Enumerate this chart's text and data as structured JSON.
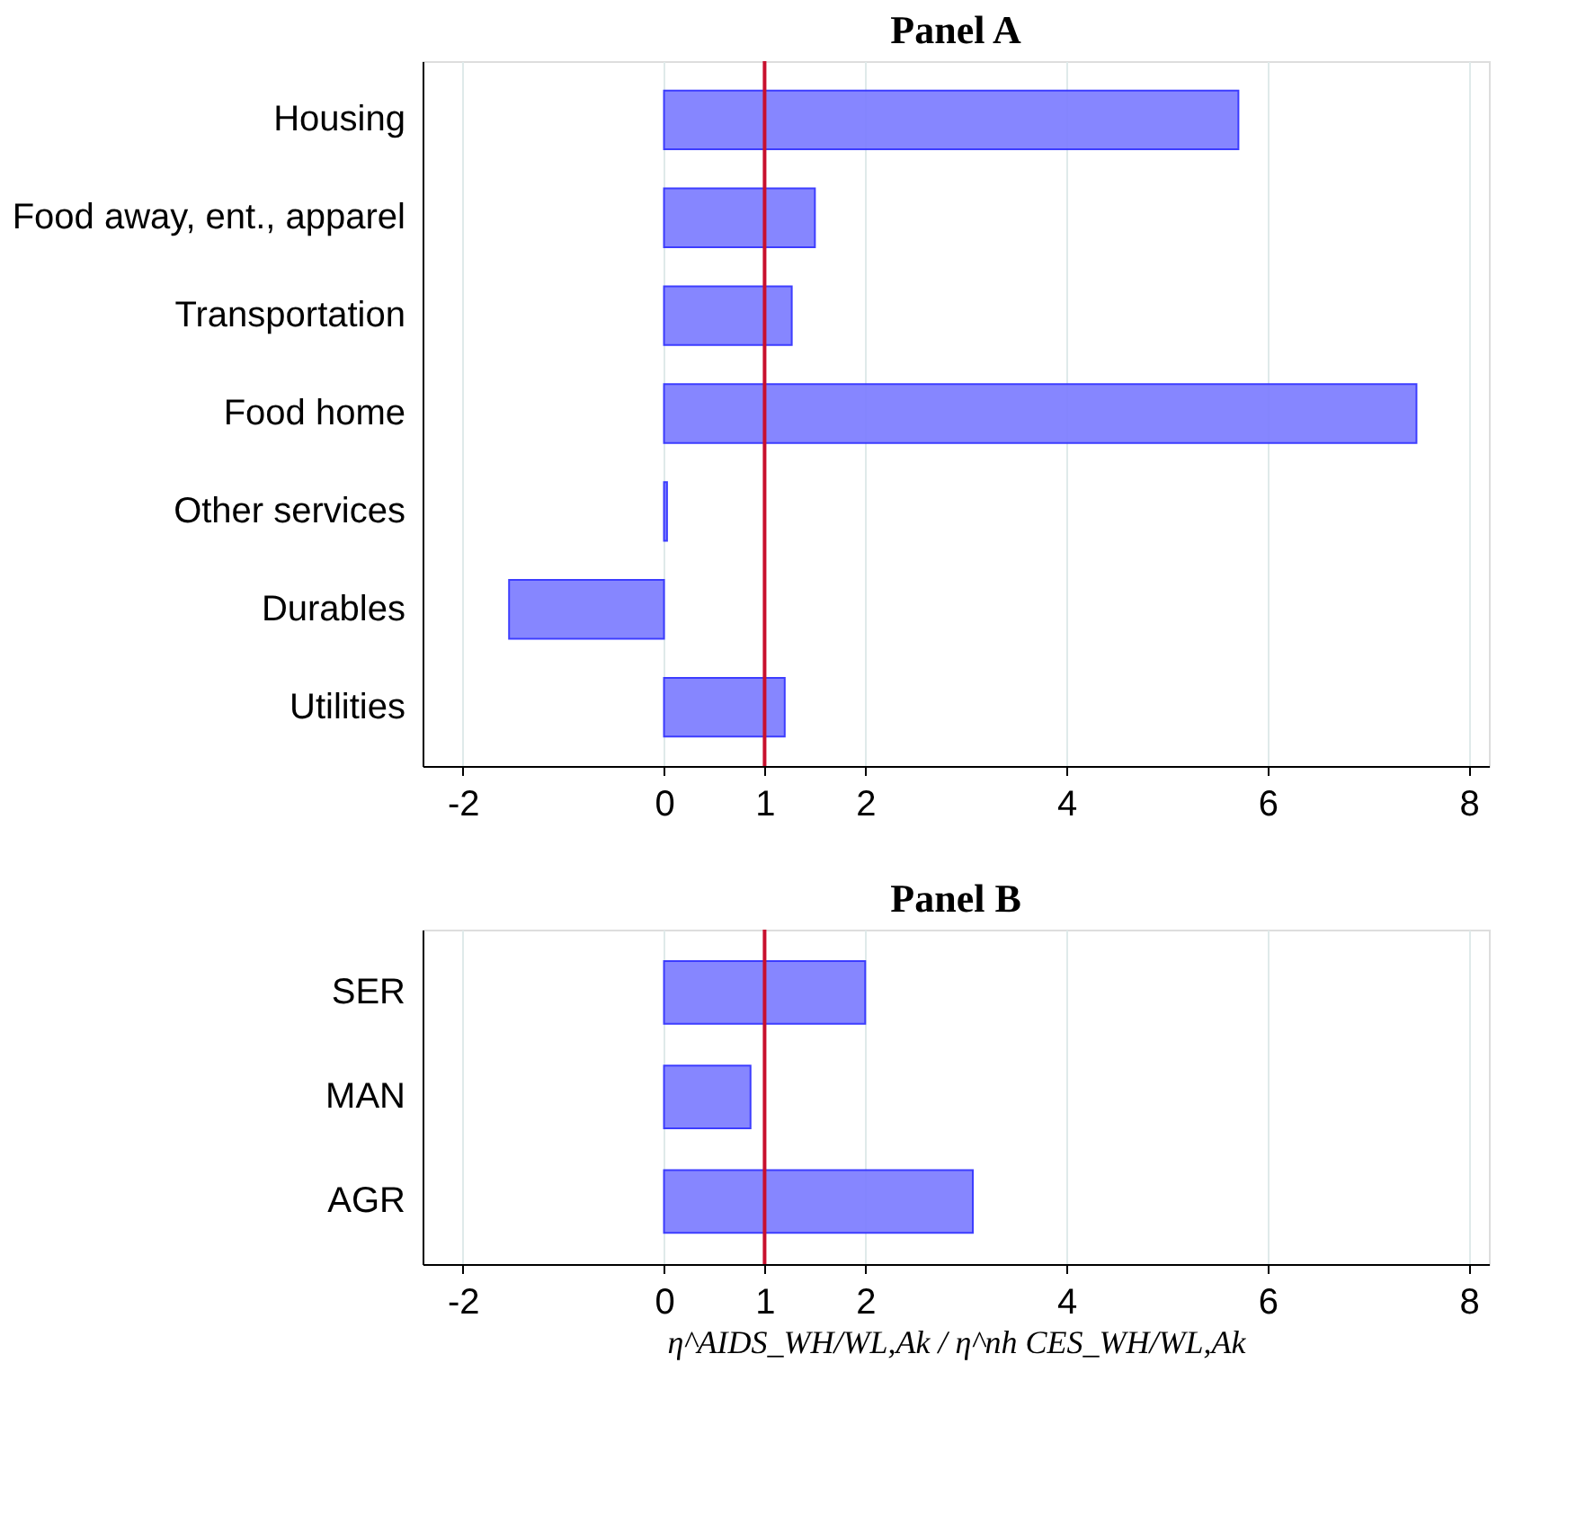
{
  "chart_data": [
    {
      "type": "bar",
      "title": "Panel A",
      "orientation": "horizontal",
      "categories": [
        "Housing",
        "Food away, ent., apparel",
        "Transportation",
        "Food home",
        "Other services",
        "Durables",
        "Utilities"
      ],
      "series": [
        {
          "color": "#8080ff",
          "values": [
            5.71,
            1.5,
            1.27,
            7.48,
            0.03,
            -1.54,
            1.2
          ]
        }
      ],
      "xlim": [
        -2.4,
        8.2
      ],
      "xticks": [
        -2,
        0,
        1,
        2,
        4,
        6,
        8
      ],
      "grid": "x",
      "ref_lines": [
        {
          "axis": "x",
          "value": 1,
          "color": "#c8102e"
        }
      ]
    },
    {
      "type": "bar",
      "title": "Panel B",
      "orientation": "horizontal",
      "categories": [
        "SER",
        "MAN",
        "AGR"
      ],
      "series": [
        {
          "color": "#8080ff",
          "values": [
            2.0,
            0.86,
            3.07
          ]
        }
      ],
      "xlim": [
        -2.4,
        8.2
      ],
      "xticks": [
        -2,
        0,
        1,
        2,
        4,
        6,
        8
      ],
      "grid": "x",
      "xlabel": "η^AIDS_WH/WL,Ak / η^nh CES_WH/WL,Ak",
      "ref_lines": [
        {
          "axis": "x",
          "value": 1,
          "color": "#c8102e"
        }
      ]
    }
  ]
}
